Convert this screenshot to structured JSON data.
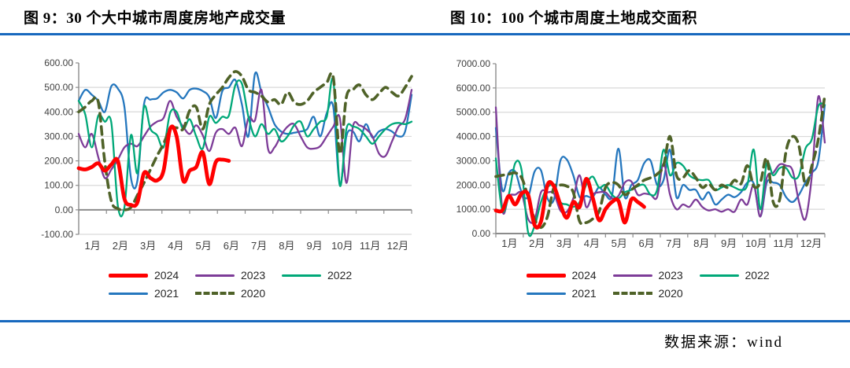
{
  "page": {
    "left_title": "图 9：30 个大中城市周度房地产成交量",
    "right_title": "图 10：100 个城市周度土地成交面积",
    "source_label": "数据来源：wind",
    "accent_rule_color": "#1768BE"
  },
  "colors": {
    "y2024": "#FF0000",
    "y2023": "#7D3C98",
    "y2022": "#00A878",
    "y2021": "#2577BE",
    "y2020": "#4F6228",
    "gridline": "#D9D9D9",
    "axis": "#8C8C8C"
  },
  "chart_data": [
    {
      "id": "housing",
      "type": "line",
      "title": "图 9：30 个大中城市周度房地产成交量",
      "xlabel": "",
      "ylabel": "",
      "ylim": [
        -100,
        600
      ],
      "ytick_labels": [
        "600.00",
        "500.00",
        "400.00",
        "300.00",
        "200.00",
        "100.00",
        "0.00",
        "-100.00"
      ],
      "x_labels": [
        "1月",
        "2月",
        "3月",
        "4月",
        "5月",
        "6月",
        "7月",
        "8月",
        "9月",
        "10月",
        "11月",
        "12月"
      ],
      "n_points": 52,
      "grid": true,
      "legend_position": "bottom",
      "legend_rows": [
        [
          "2024",
          "2023",
          "2022"
        ],
        [
          "2021",
          "2020"
        ]
      ],
      "series": [
        {
          "name": "2021",
          "color": "#2577BE",
          "width": 2.3,
          "dash": null,
          "values": [
            445,
            490,
            470,
            445,
            400,
            505,
            495,
            420,
            130,
            120,
            430,
            450,
            455,
            480,
            490,
            480,
            455,
            490,
            495,
            485,
            460,
            375,
            485,
            500,
            530,
            430,
            300,
            555,
            480,
            420,
            350,
            320,
            310,
            315,
            320,
            330,
            380,
            300,
            395,
            420,
            100,
            300,
            320,
            280,
            350,
            295,
            320,
            330,
            320,
            300,
            320,
            470
          ]
        },
        {
          "name": "2023",
          "color": "#7D3C98",
          "width": 2.3,
          "dash": null,
          "values": [
            310,
            255,
            310,
            215,
            130,
            165,
            205,
            255,
            270,
            260,
            300,
            340,
            360,
            375,
            445,
            380,
            340,
            310,
            345,
            305,
            240,
            315,
            330,
            310,
            335,
            260,
            375,
            365,
            490,
            250,
            255,
            305,
            340,
            350,
            300,
            255,
            250,
            260,
            300,
            340,
            375,
            110,
            340,
            345,
            330,
            300,
            230,
            220,
            280,
            340,
            370,
            490
          ]
        },
        {
          "name": "2022",
          "color": "#00A878",
          "width": 2.3,
          "dash": null,
          "values": [
            445,
            390,
            255,
            385,
            360,
            355,
            15,
            10,
            305,
            150,
            420,
            330,
            305,
            255,
            395,
            400,
            330,
            370,
            300,
            250,
            380,
            355,
            380,
            385,
            510,
            515,
            380,
            300,
            350,
            310,
            330,
            280,
            300,
            345,
            360,
            300,
            330,
            360,
            380,
            530,
            100,
            330,
            340,
            330,
            300,
            270,
            300,
            330,
            350,
            355,
            350,
            360
          ]
        },
        {
          "name": "2020",
          "color": "#4F6228",
          "width": 3.6,
          "dash": "10 7",
          "values": [
            400,
            420,
            445,
            440,
            195,
            35,
            5,
            0,
            10,
            60,
            110,
            165,
            220,
            270,
            330,
            335,
            330,
            405,
            420,
            330,
            430,
            470,
            500,
            540,
            565,
            545,
            490,
            480,
            465,
            440,
            450,
            430,
            480,
            440,
            430,
            445,
            480,
            500,
            520,
            540,
            230,
            460,
            490,
            510,
            470,
            450,
            475,
            500,
            480,
            465,
            500,
            545
          ]
        },
        {
          "name": "2024",
          "color": "#FF0000",
          "width": 4.8,
          "dash": null,
          "values": [
            170,
            165,
            175,
            190,
            160,
            185,
            200,
            45,
            20,
            30,
            150,
            130,
            120,
            160,
            330,
            300,
            120,
            160,
            175,
            235,
            105,
            195,
            205,
            200
          ]
        }
      ]
    },
    {
      "id": "land",
      "type": "line",
      "title": "图 10：100 个城市周度土地成交面积",
      "xlabel": "",
      "ylabel": "",
      "ylim": [
        0,
        7000
      ],
      "ytick_labels": [
        "7000.00",
        "6000.00",
        "5000.00",
        "4000.00",
        "3000.00",
        "2000.00",
        "1000.00",
        "0.00"
      ],
      "x_labels": [
        "1月",
        "2月",
        "3月",
        "4月",
        "5月",
        "6月",
        "7月",
        "8月",
        "9月",
        "10月",
        "11月",
        "12月"
      ],
      "n_points": 52,
      "grid": true,
      "legend_position": "bottom",
      "legend_rows": [
        [
          "2024",
          "2023",
          "2022"
        ],
        [
          "2021",
          "2020"
        ]
      ],
      "series": [
        {
          "name": "2021",
          "color": "#2577BE",
          "width": 2.3,
          "dash": null,
          "values": [
            4350,
            1800,
            2500,
            2550,
            1700,
            1500,
            2550,
            2600,
            1450,
            1400,
            3000,
            3050,
            2400,
            1500,
            1550,
            1500,
            1900,
            1600,
            1550,
            3500,
            1500,
            2000,
            2200,
            2900,
            3000,
            2000,
            2200,
            3450,
            1500,
            2000,
            1800,
            1800,
            1400,
            1700,
            1200,
            1400,
            1600,
            1500,
            1700,
            2100,
            2050,
            700,
            2100,
            2100,
            2000,
            1500,
            1300,
            1600,
            2100,
            2500,
            3000,
            5300
          ]
        },
        {
          "name": "2023",
          "color": "#7D3C98",
          "width": 2.3,
          "dash": null,
          "values": [
            5200,
            1000,
            1550,
            1600,
            1650,
            600,
            550,
            1700,
            1700,
            1650,
            950,
            900,
            1450,
            2400,
            1100,
            1600,
            1700,
            1700,
            1450,
            1550,
            2100,
            2150,
            1600,
            1650,
            1600,
            1500,
            2900,
            1600,
            1000,
            1200,
            1100,
            1400,
            1100,
            950,
            1000,
            900,
            1000,
            900,
            1400,
            1200,
            2000,
            700,
            2300,
            2500,
            2850,
            2800,
            2600,
            1300,
            600,
            2400,
            5650,
            3750
          ]
        },
        {
          "name": "2022",
          "color": "#00A878",
          "width": 2.3,
          "dash": null,
          "values": [
            3100,
            950,
            1600,
            2900,
            2600,
            50,
            300,
            1300,
            1900,
            1950,
            1300,
            1200,
            1100,
            1300,
            2000,
            2350,
            1900,
            2000,
            1600,
            1450,
            1700,
            1800,
            1950,
            2000,
            1600,
            1800,
            3450,
            2400,
            2900,
            2800,
            2400,
            2250,
            2200,
            2200,
            1800,
            1900,
            2000,
            1900,
            1800,
            2000,
            3450,
            1000,
            2900,
            2400,
            2700,
            2700,
            2300,
            2400,
            3500,
            3900,
            5250,
            5300
          ]
        },
        {
          "name": "2020",
          "color": "#4F6228",
          "width": 3.6,
          "dash": "10 7",
          "values": [
            2350,
            2400,
            2450,
            2500,
            2300,
            1500,
            600,
            250,
            700,
            1900,
            2000,
            1950,
            1700,
            500,
            450,
            600,
            900,
            1900,
            2100,
            2000,
            1600,
            1800,
            2000,
            2200,
            2300,
            2450,
            2800,
            4000,
            2400,
            2300,
            2600,
            2300,
            1900,
            2050,
            1800,
            2000,
            1900,
            2200,
            2050,
            2800,
            1950,
            2100,
            3100,
            1300,
            1400,
            3400,
            4000,
            3600,
            2000,
            2800,
            3900,
            5700
          ]
        },
        {
          "name": "2024",
          "color": "#FF0000",
          "width": 4.8,
          "dash": null,
          "values": [
            950,
            950,
            1550,
            1200,
            1650,
            1600,
            350,
            500,
            2000,
            1950,
            1200,
            650,
            1300,
            1100,
            2250,
            1500,
            550,
            1000,
            1300,
            1350,
            450,
            1400,
            1300,
            1100
          ]
        }
      ]
    }
  ]
}
